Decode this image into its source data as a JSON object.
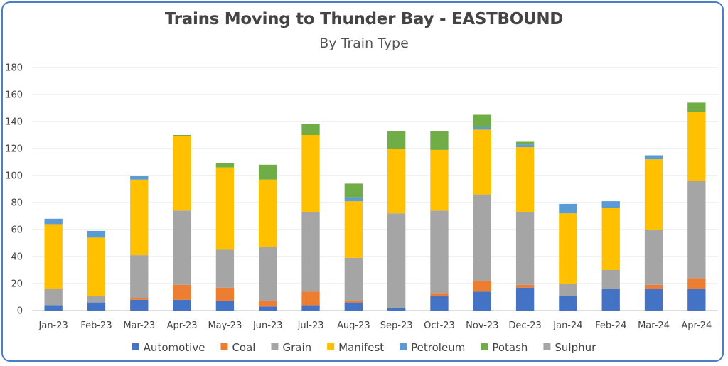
{
  "chart_data": {
    "type": "bar",
    "stacked": true,
    "title": "Trains Moving to Thunder Bay - EASTBOUND",
    "subtitle": "By Train Type",
    "xlabel": "",
    "ylabel": "",
    "ylim": [
      0,
      180
    ],
    "yticks": [
      0,
      20,
      40,
      60,
      80,
      100,
      120,
      140,
      160,
      180
    ],
    "grid": true,
    "legend_position": "bottom",
    "categories": [
      "Jan-23",
      "Feb-23",
      "Mar-23",
      "Apr-23",
      "May-23",
      "Jun-23",
      "Jul-23",
      "Aug-23",
      "Sep-23",
      "Oct-23",
      "Nov-23",
      "Dec-23",
      "Jan-24",
      "Feb-24",
      "Mar-24",
      "Apr-24"
    ],
    "series": [
      {
        "name": "Automotive",
        "color": "#4472c4",
        "values": [
          4,
          6,
          8,
          8,
          7,
          3,
          4,
          6,
          2,
          11,
          14,
          17,
          11,
          16,
          16,
          16
        ]
      },
      {
        "name": "Coal",
        "color": "#ed7d31",
        "values": [
          0,
          0,
          1,
          11,
          10,
          4,
          10,
          1,
          0,
          2,
          8,
          2,
          0,
          0,
          3,
          8
        ]
      },
      {
        "name": "Grain",
        "color": "#a5a5a5",
        "values": [
          12,
          5,
          32,
          55,
          28,
          40,
          59,
          32,
          70,
          61,
          64,
          54,
          9,
          14,
          41,
          72
        ]
      },
      {
        "name": "Manifest",
        "color": "#ffc000",
        "values": [
          48,
          43,
          56,
          55,
          61,
          50,
          57,
          42,
          48,
          45,
          48,
          48,
          52,
          46,
          52,
          51
        ]
      },
      {
        "name": "Petroleum",
        "color": "#5b9bd5",
        "values": [
          4,
          5,
          3,
          0,
          0,
          0,
          0,
          3,
          0,
          0,
          2,
          2,
          7,
          5,
          3,
          0
        ]
      },
      {
        "name": "Potash",
        "color": "#70ad47",
        "values": [
          0,
          0,
          0,
          1,
          3,
          11,
          8,
          10,
          13,
          14,
          9,
          2,
          0,
          0,
          0,
          7
        ]
      },
      {
        "name": "Sulphur",
        "color": "#a5a5a5",
        "values": [
          0,
          0,
          0,
          0,
          0,
          0,
          0,
          0,
          0,
          0,
          0,
          0,
          0,
          0,
          0,
          0
        ]
      }
    ]
  }
}
